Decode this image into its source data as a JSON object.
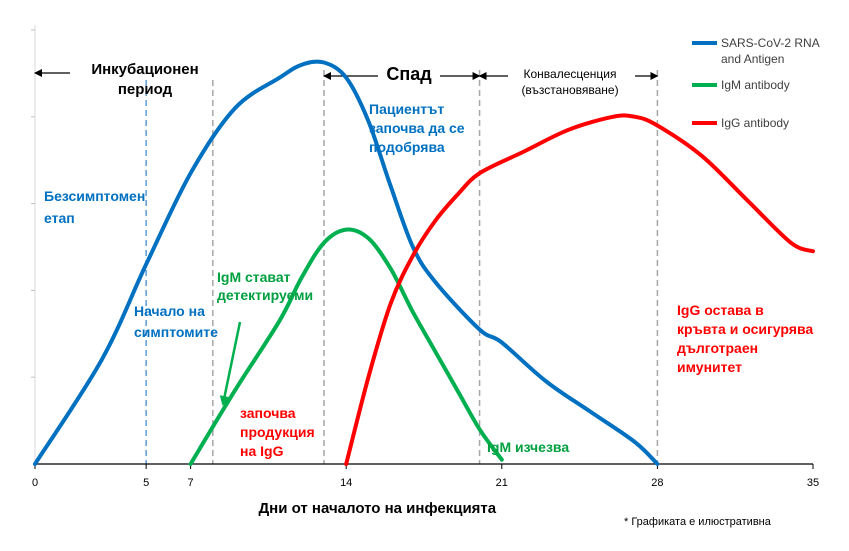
{
  "chart_data": {
    "type": "line",
    "title": "",
    "xlabel": "Дни от началото на инфекцията",
    "ylabel": "",
    "x_ticks": [
      0,
      5,
      7,
      14,
      21,
      28,
      35
    ],
    "xlim": [
      0,
      35
    ],
    "ylim": [
      0,
      100
    ],
    "grid": false,
    "legend_position": "top-right",
    "series": [
      {
        "name": "SARS-CoV-2 RNA and Antigen",
        "color": "#0070c0",
        "points": [
          [
            0,
            0
          ],
          [
            3,
            24
          ],
          [
            5,
            46
          ],
          [
            7,
            67
          ],
          [
            9,
            82
          ],
          [
            11,
            89
          ],
          [
            12,
            92
          ],
          [
            13,
            92.5
          ],
          [
            14,
            89
          ],
          [
            15,
            79
          ],
          [
            16,
            64
          ],
          [
            17,
            50
          ],
          [
            18,
            42
          ],
          [
            20,
            31
          ],
          [
            21,
            28
          ],
          [
            23,
            19
          ],
          [
            25,
            12
          ],
          [
            27,
            5
          ],
          [
            28,
            0
          ]
        ]
      },
      {
        "name": "IgM antibody",
        "color": "#00b050",
        "points": [
          [
            7,
            0
          ],
          [
            9,
            17
          ],
          [
            11,
            33
          ],
          [
            12,
            43
          ],
          [
            13,
            51
          ],
          [
            14,
            54
          ],
          [
            15,
            52
          ],
          [
            16,
            45
          ],
          [
            17,
            35
          ],
          [
            18,
            26
          ],
          [
            19,
            17
          ],
          [
            20,
            8
          ],
          [
            21,
            1
          ]
        ]
      },
      {
        "name": "IgG antibody",
        "color": "#ff0000",
        "points": [
          [
            14,
            0
          ],
          [
            15,
            20
          ],
          [
            16,
            37
          ],
          [
            17,
            48
          ],
          [
            18,
            56
          ],
          [
            19,
            62
          ],
          [
            20,
            67
          ],
          [
            22,
            72
          ],
          [
            24,
            77
          ],
          [
            26,
            80
          ],
          [
            27,
            80
          ],
          [
            28,
            78
          ],
          [
            30,
            71
          ],
          [
            32,
            61
          ],
          [
            34,
            51
          ],
          [
            35,
            49
          ]
        ]
      }
    ],
    "vlines": [
      {
        "x": 5,
        "color": "#5b9bd5"
      },
      {
        "x": 8,
        "color": "#a6a6a6"
      },
      {
        "x": 13,
        "color": "#a6a6a6"
      },
      {
        "x": 20,
        "color": "#a6a6a6"
      },
      {
        "x": 28,
        "color": "#a6a6a6"
      }
    ],
    "phases": [
      {
        "label": "Инкубационен период",
        "from": 0,
        "to": 8
      },
      {
        "label": "Спад",
        "from": 13,
        "to": 20
      },
      {
        "label": "Конвалесценция (възстановяване)",
        "from": 20,
        "to": 28
      }
    ],
    "annotations": [
      {
        "key": "asympt",
        "text": "Безсимптомен етап",
        "color": "#0070c0"
      },
      {
        "key": "onset",
        "text": "Начало на симптомите",
        "color": "#0070c0"
      },
      {
        "key": "improve",
        "text": "Пациентът започва да се подобрява",
        "color": "#0070c0"
      },
      {
        "key": "igm_detect",
        "text": "IgM стават детектируеми",
        "color": "#00a040"
      },
      {
        "key": "igg_start",
        "text": "започва продукция на IgG",
        "color": "#ff0000"
      },
      {
        "key": "igm_gone",
        "text": "IgM изчезва",
        "color": "#00a040"
      },
      {
        "key": "igg_stays",
        "text": "IgG остава в кръвта и осигурява дълготраен имунитет",
        "color": "#ff0000"
      }
    ],
    "footnote": "* Графиката е илюстративна"
  }
}
